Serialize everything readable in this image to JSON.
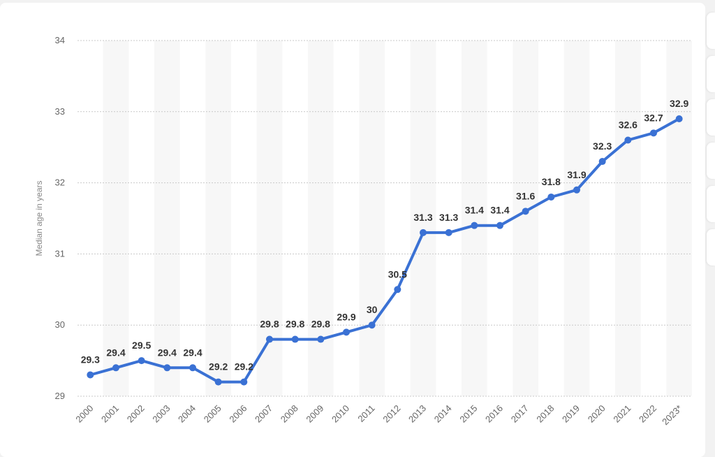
{
  "chart_data": {
    "type": "line",
    "title": "",
    "xlabel": "",
    "ylabel": "Median age in years",
    "categories": [
      "2000",
      "2001",
      "2002",
      "2003",
      "2004",
      "2005",
      "2006",
      "2007",
      "2008",
      "2009",
      "2010",
      "2011",
      "2012",
      "2013",
      "2014",
      "2015",
      "2016",
      "2017",
      "2018",
      "2019",
      "2020",
      "2021",
      "2022",
      "2023*"
    ],
    "series": [
      {
        "values": [
          29.3,
          29.4,
          29.5,
          29.4,
          29.4,
          29.2,
          29.2,
          29.8,
          29.8,
          29.8,
          29.9,
          30,
          30.5,
          31.3,
          31.3,
          31.4,
          31.4,
          31.6,
          31.8,
          31.9,
          32.3,
          32.6,
          32.7,
          32.9
        ],
        "color": "#3a71d4"
      }
    ],
    "ylim": [
      29,
      34
    ],
    "yticks": [
      29,
      30,
      31,
      32,
      33,
      34
    ],
    "grid": true,
    "legend": "none"
  }
}
